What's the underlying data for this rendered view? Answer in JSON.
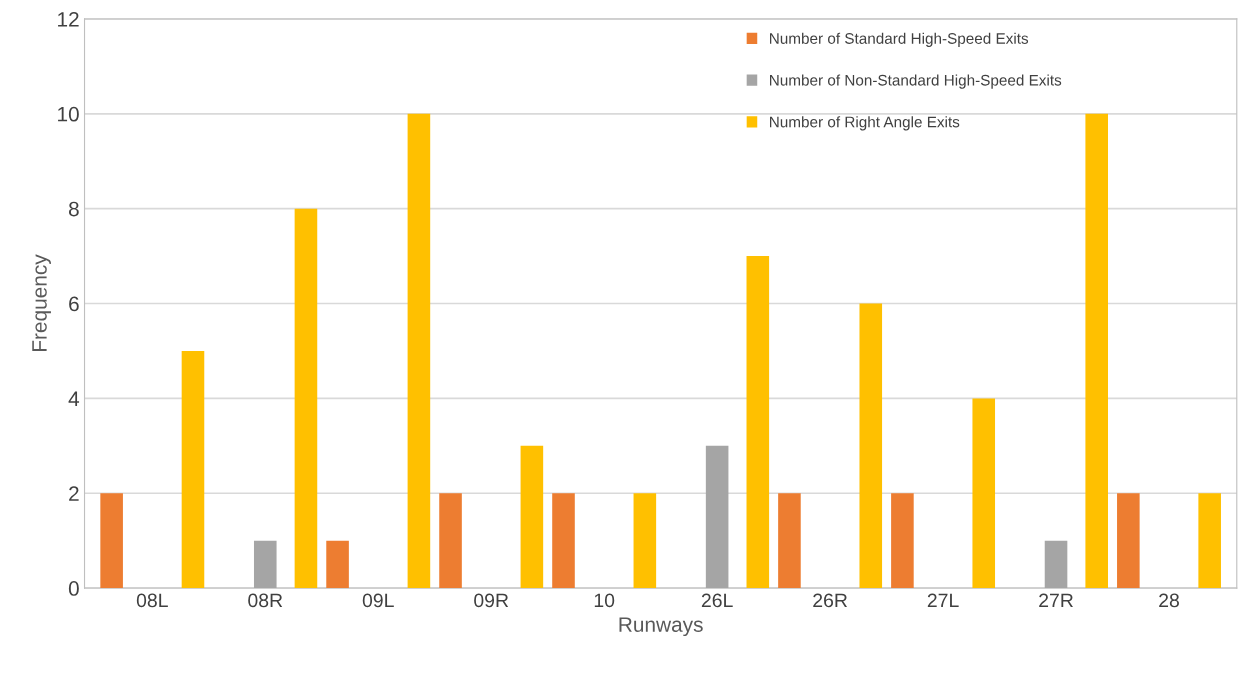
{
  "chart_data": {
    "type": "bar",
    "xlabel": "Runways",
    "ylabel": "Frequency",
    "categories": [
      "08L",
      "08R",
      "09L",
      "09R",
      "10",
      "26L",
      "26R",
      "27L",
      "27R",
      "28"
    ],
    "series": [
      {
        "name": "Number of Standard High-Speed Exits",
        "color": "#ed7d31",
        "values": [
          2,
          0,
          1,
          2,
          2,
          0,
          2,
          2,
          0,
          2
        ]
      },
      {
        "name": "Number of Non-Standard High-Speed Exits",
        "color": "#a5a5a5",
        "values": [
          0,
          1,
          0,
          0,
          0,
          3,
          0,
          0,
          1,
          0
        ]
      },
      {
        "name": "Number of Right Angle Exits",
        "color": "#ffc000",
        "values": [
          5,
          8,
          10,
          3,
          2,
          7,
          6,
          4,
          10,
          2
        ]
      }
    ],
    "ylim": [
      0,
      12
    ],
    "yticks": [
      0,
      2,
      4,
      6,
      8,
      10,
      12
    ],
    "grid": "y",
    "legend": "top right"
  }
}
